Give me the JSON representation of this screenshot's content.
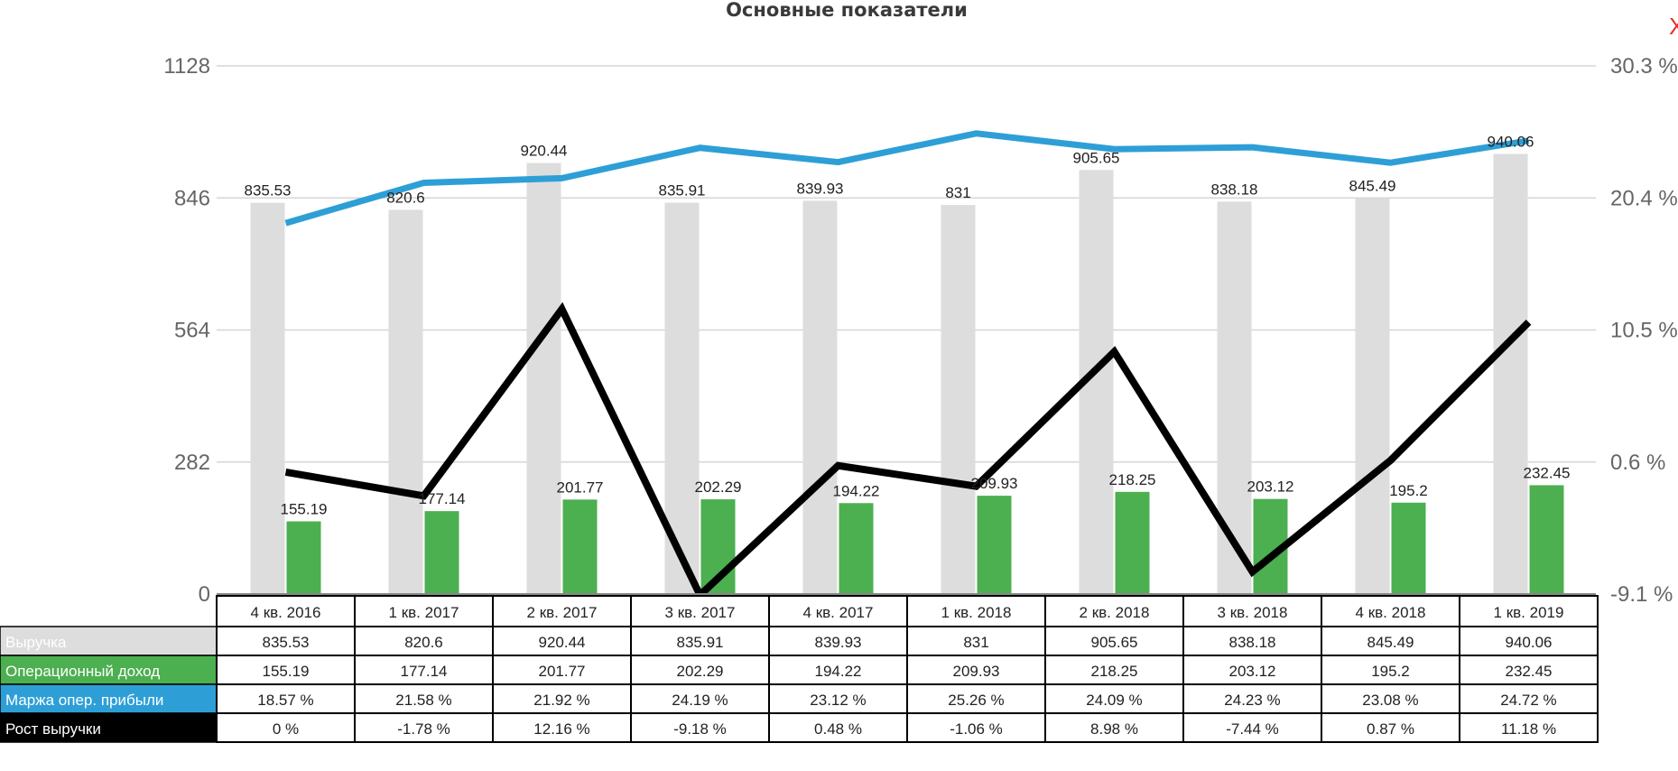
{
  "close_symbol": "X",
  "chart_data": {
    "type": "bar",
    "title": "Основные показатели",
    "categories": [
      "4 кв. 2016",
      "1 кв. 2017",
      "2 кв. 2017",
      "3 кв. 2017",
      "4 кв. 2017",
      "1 кв. 2018",
      "2 кв. 2018",
      "3 кв. 2018",
      "4 кв. 2018",
      "1 кв. 2019"
    ],
    "left_axis": {
      "ticks": [
        "0",
        "282",
        "564",
        "846",
        "1128"
      ],
      "min": 0,
      "max": 1128
    },
    "right_axis": {
      "ticks": [
        "-9.1 %",
        "0.6 %",
        "10.5 %",
        "20.4 %",
        "30.3 %"
      ],
      "min": -9.1,
      "max": 30.3
    },
    "grid": true,
    "series": [
      {
        "name": "Выручка",
        "type": "bar",
        "axis": "left",
        "color": "#dddddd",
        "text_color": "#ffffff",
        "values": [
          835.53,
          820.6,
          920.44,
          835.91,
          839.93,
          831,
          905.65,
          838.18,
          845.49,
          940.06
        ],
        "labels": [
          "835.53",
          "820.6",
          "920.44",
          "835.91",
          "839.93",
          "831",
          "905.65",
          "838.18",
          "845.49",
          "940.06"
        ]
      },
      {
        "name": "Операционный доход",
        "type": "bar",
        "axis": "left",
        "color": "#4caf50",
        "text_color": "#ffffff",
        "values": [
          155.19,
          177.14,
          201.77,
          202.29,
          194.22,
          209.93,
          218.25,
          203.12,
          195.2,
          232.45
        ],
        "labels": [
          "155.19",
          "177.14",
          "201.77",
          "202.29",
          "194.22",
          "209.93",
          "218.25",
          "203.12",
          "195.2",
          "232.45"
        ]
      },
      {
        "name": "Маржа опер. прибыли",
        "type": "line",
        "axis": "right",
        "color": "#2e9fd6",
        "text_color": "#ffffff",
        "values": [
          18.57,
          21.58,
          21.92,
          24.19,
          23.12,
          25.26,
          24.09,
          24.23,
          23.08,
          24.72
        ],
        "labels": [
          "18.57 %",
          "21.58 %",
          "21.92 %",
          "24.19 %",
          "23.12 %",
          "25.26 %",
          "24.09 %",
          "24.23 %",
          "23.08 %",
          "24.72 %"
        ]
      },
      {
        "name": "Рост выручки",
        "type": "line",
        "axis": "right",
        "color": "#000000",
        "text_color": "#ffffff",
        "values": [
          0,
          -1.78,
          12.16,
          -9.18,
          0.48,
          -1.06,
          8.98,
          -7.44,
          0.87,
          11.18
        ],
        "labels": [
          "0 %",
          "-1.78 %",
          "12.16 %",
          "-9.18 %",
          "0.48 %",
          "-1.06 %",
          "8.98 %",
          "-7.44 %",
          "0.87 %",
          "11.18 %"
        ]
      }
    ]
  }
}
